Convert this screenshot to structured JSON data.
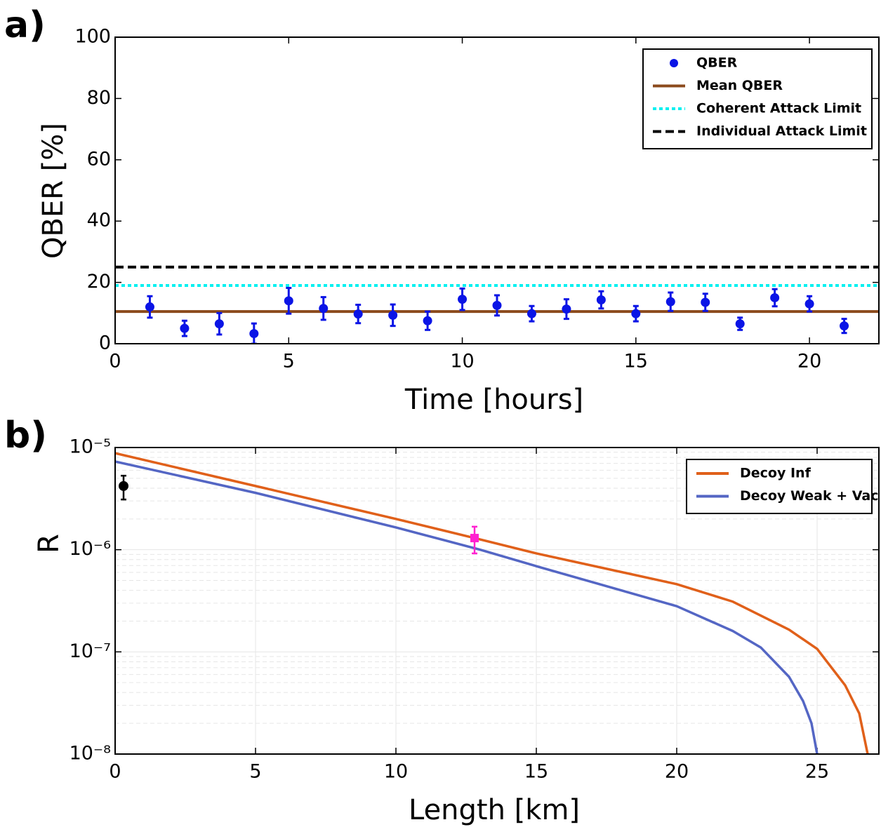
{
  "chart_data": [
    {
      "type": "scatter",
      "panel_label": "a)",
      "xlabel": "Time [hours]",
      "ylabel": "QBER [%]",
      "x": [
        1,
        2,
        3,
        4,
        5,
        6,
        7,
        8,
        9,
        10,
        11,
        12,
        13,
        14,
        15,
        16,
        17,
        18,
        19,
        20,
        21
      ],
      "series": [
        {
          "name": "QBER",
          "color": "#0a14e6",
          "values": [
            12,
            5,
            6.5,
            3.3,
            14,
            11.5,
            9.7,
            9.3,
            7.5,
            14.5,
            12.5,
            9.8,
            11.3,
            14.3,
            9.8,
            13.7,
            13.5,
            6.5,
            15,
            13,
            5.8
          ],
          "errors": [
            3.5,
            2.5,
            3.5,
            3.3,
            4.2,
            3.7,
            3,
            3.5,
            3,
            3.5,
            3.3,
            2.5,
            3.2,
            2.8,
            2.5,
            3,
            2.8,
            2,
            2.8,
            2.5,
            2.3
          ]
        }
      ],
      "reference_lines": [
        {
          "name": "Mean QBER",
          "color": "#8b4a1c",
          "style": "solid",
          "value": 10.5
        },
        {
          "name": "Coherent Attack Limit",
          "color": "#00f0f0",
          "style": "dotted",
          "value": 19
        },
        {
          "name": "Individual Attack Limit",
          "color": "#000000",
          "style": "dashed",
          "value": 25
        }
      ],
      "xlim": [
        0,
        22
      ],
      "xticks": [
        0,
        5,
        10,
        15,
        20
      ],
      "ylim": [
        0,
        100
      ],
      "yticks": [
        0,
        20,
        40,
        60,
        80,
        100
      ],
      "grid": false,
      "legend": "upper right"
    },
    {
      "type": "line",
      "panel_label": "b)",
      "xlabel": "Length [km]",
      "ylabel": "R",
      "log_y": true,
      "series": [
        {
          "name": "Decoy Inf",
          "color": "#e0601a",
          "x": [
            0,
            5,
            10,
            12.8,
            15,
            20,
            22,
            24,
            25,
            26,
            26.5,
            26.8
          ],
          "values": [
            8.8e-06,
            4.2e-06,
            2e-06,
            1.3e-06,
            9.2e-07,
            4.6e-07,
            3.1e-07,
            1.65e-07,
            1.07e-07,
            4.7e-08,
            2.5e-08,
            1e-08
          ]
        },
        {
          "name": "Decoy Weak + Vac",
          "color": "#5466c4",
          "x": [
            0,
            5,
            10,
            13,
            15,
            20,
            22,
            23,
            24,
            24.5,
            24.8,
            25
          ],
          "values": [
            7.3e-06,
            3.6e-06,
            1.65e-06,
            1e-06,
            6.9e-07,
            2.8e-07,
            1.6e-07,
            1.1e-07,
            5.7e-08,
            3.3e-08,
            2e-08,
            1e-08
          ]
        }
      ],
      "points": [
        {
          "x": 0.3,
          "y": 4.2e-06,
          "error": 1.1e-06,
          "color": "#000000",
          "marker": "circle"
        },
        {
          "x": 12.8,
          "y": 1.3e-06,
          "error": 3.8e-07,
          "color": "#ff20d0",
          "marker": "square"
        }
      ],
      "xlim": [
        0,
        27.2
      ],
      "xticks": [
        0,
        5,
        10,
        15,
        20,
        25
      ],
      "ylim": [
        1e-08,
        1e-05
      ],
      "yticks": [
        {
          "value": 1e-08,
          "label": "10⁻⁸"
        },
        {
          "value": 1e-07,
          "label": "10⁻⁷"
        },
        {
          "value": 1e-06,
          "label": "10⁻⁶"
        },
        {
          "value": 1e-05,
          "label": "10⁻⁵"
        }
      ],
      "grid": true,
      "legend": "upper right"
    }
  ]
}
